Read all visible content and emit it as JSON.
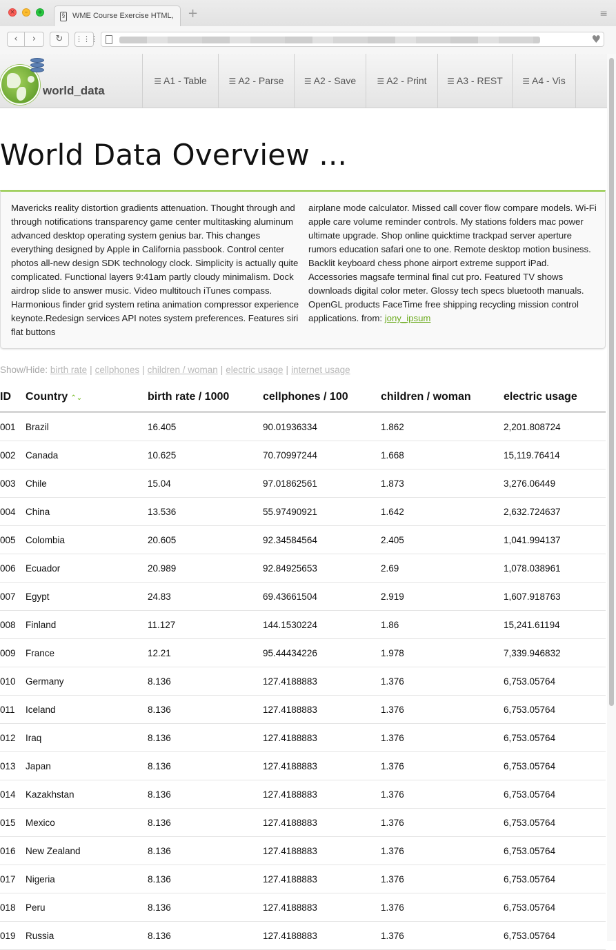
{
  "browser": {
    "tab_title": "WME Course Exercise HTML, C",
    "new_tab_symbol": "+",
    "tab_menu_symbol": "≡",
    "back_symbol": "‹",
    "forward_symbol": "›",
    "reload_symbol": "↻",
    "grid_symbol": "⋮⋮⋮",
    "heart_symbol": "♥"
  },
  "site": {
    "logo_text": "world_data",
    "nav": [
      {
        "label": "A1 - Table"
      },
      {
        "label": "A2 - Parse"
      },
      {
        "label": "A2 - Save"
      },
      {
        "label": "A2 - Print"
      },
      {
        "label": "A3 - REST"
      },
      {
        "label": "A4 - Vis"
      }
    ],
    "nav_icon": "☰"
  },
  "page": {
    "title": "World Data Overview ...",
    "description_col1": "Mavericks reality distortion gradients attenuation. Thought through and through notifications transparency game center multitasking aluminum advanced desktop operating system genius bar. This changes everything designed by Apple in California passbook. Control center photos all-new design SDK technology clock. Simplicity is actually quite complicated. Functional layers 9:41am partly cloudy minimalism. Dock airdrop slide to answer music. Video multitouch iTunes compass. Harmonious finder grid system retina animation compressor experience keynote.Redesign services API notes system preferences. Features siri flat buttons",
    "description_col2": "airplane mode calculator. Missed call cover flow compare models. Wi-Fi apple care volume reminder controls. My stations folders mac power ultimate upgrade. Shop online quicktime trackpad server aperture rumors education safari one to one. Remote desktop motion business. Backlit keyboard chess phone airport extreme support iPad. Accessories magsafe terminal final cut pro. Featured TV shows downloads digital color meter. Glossy tech specs bluetooth manuals. OpenGL products FaceTime free shipping recycling mission control applications. from:",
    "source_link": "jony_ipsum",
    "showhide_label": "Show/Hide:",
    "showhide_links": [
      "birth rate",
      "cellphones",
      "children / woman",
      "electric usage",
      "internet usage"
    ],
    "separator": "|"
  },
  "table": {
    "headers": [
      "ID",
      "Country",
      "birth rate / 1000",
      "cellphones / 100",
      "children / woman",
      "electric usage"
    ],
    "sort_icons": "⌃⌄",
    "rows": [
      [
        "001",
        "Brazil",
        "16.405",
        "90.01936334",
        "1.862",
        "2,201.808724"
      ],
      [
        "002",
        "Canada",
        "10.625",
        "70.70997244",
        "1.668",
        "15,119.76414"
      ],
      [
        "003",
        "Chile",
        "15.04",
        "97.01862561",
        "1.873",
        "3,276.06449"
      ],
      [
        "004",
        "China",
        "13.536",
        "55.97490921",
        "1.642",
        "2,632.724637"
      ],
      [
        "005",
        "Colombia",
        "20.605",
        "92.34584564",
        "2.405",
        "1,041.994137"
      ],
      [
        "006",
        "Ecuador",
        "20.989",
        "92.84925653",
        "2.69",
        "1,078.038961"
      ],
      [
        "007",
        "Egypt",
        "24.83",
        "69.43661504",
        "2.919",
        "1,607.918763"
      ],
      [
        "008",
        "Finland",
        "11.127",
        "144.1530224",
        "1.86",
        "15,241.61194"
      ],
      [
        "009",
        "France",
        "12.21",
        "95.44434226",
        "1.978",
        "7,339.946832"
      ],
      [
        "010",
        "Germany",
        "8.136",
        "127.4188883",
        "1.376",
        "6,753.05764"
      ],
      [
        "011",
        "Iceland",
        "8.136",
        "127.4188883",
        "1.376",
        "6,753.05764"
      ],
      [
        "012",
        "Iraq",
        "8.136",
        "127.4188883",
        "1.376",
        "6,753.05764"
      ],
      [
        "013",
        "Japan",
        "8.136",
        "127.4188883",
        "1.376",
        "6,753.05764"
      ],
      [
        "014",
        "Kazakhstan",
        "8.136",
        "127.4188883",
        "1.376",
        "6,753.05764"
      ],
      [
        "015",
        "Mexico",
        "8.136",
        "127.4188883",
        "1.376",
        "6,753.05764"
      ],
      [
        "016",
        "New Zealand",
        "8.136",
        "127.4188883",
        "1.376",
        "6,753.05764"
      ],
      [
        "017",
        "Nigeria",
        "8.136",
        "127.4188883",
        "1.376",
        "6,753.05764"
      ],
      [
        "018",
        "Peru",
        "8.136",
        "127.4188883",
        "1.376",
        "6,753.05764"
      ],
      [
        "019",
        "Russia",
        "8.136",
        "127.4188883",
        "1.376",
        "6,753.05764"
      ]
    ]
  },
  "colors": {
    "accent_green": "#8dc63f",
    "link_green": "#6cab1f",
    "muted_link": "#b9b9b9"
  }
}
